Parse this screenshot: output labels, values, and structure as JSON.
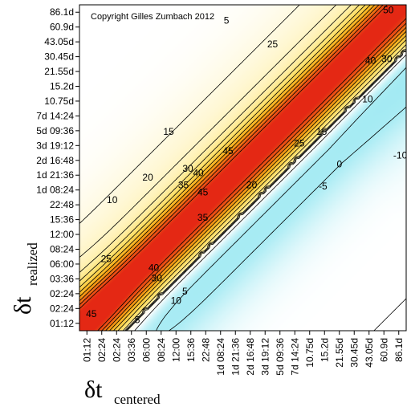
{
  "chart_data": {
    "type": "heatmap",
    "subtype": "filled-contour",
    "annotation": "Copyright Gilles Zumbach 2012",
    "xlabel": {
      "symbol": "δt",
      "subscript": "centered"
    },
    "ylabel": {
      "symbol": "δt",
      "subscript": "realized"
    },
    "x_ticks": [
      "01:12",
      "02:24",
      "02:24",
      "03:36",
      "06:00",
      "08:24",
      "12:00",
      "15:36",
      "22:48",
      "1d 08:24",
      "1d 21:36",
      "2d 16:48",
      "3d 19:12",
      "5d 09:36",
      "7d 14:24",
      "10.75d",
      "15.2d",
      "21.55d",
      "30.45d",
      "43.05d",
      "60.9d",
      "86.1d"
    ],
    "y_ticks": [
      "01:12",
      "02:24",
      "02:24",
      "03:36",
      "06:00",
      "08:24",
      "12:00",
      "15:36",
      "22:48",
      "1d 08:24",
      "1d 21:36",
      "2d 16:48",
      "3d 19:12",
      "5d 09:36",
      "7d 14:24",
      "10.75d",
      "15.2d",
      "21.55d",
      "30.45d",
      "43.05d",
      "60.9d",
      "86.1d"
    ],
    "contour_levels": [
      -10,
      -5,
      0,
      5,
      10,
      15,
      20,
      25,
      30,
      35,
      40,
      45,
      50
    ],
    "contour_labels": [
      {
        "text": "50",
        "x": 20.3,
        "y": 21.1
      },
      {
        "text": "45",
        "x": 0.3,
        "y": 0.6
      },
      {
        "text": "45",
        "x": 9.5,
        "y": 11.6
      },
      {
        "text": "45",
        "x": 7.8,
        "y": 8.8
      },
      {
        "text": "40",
        "x": 19.1,
        "y": 17.7
      },
      {
        "text": "40",
        "x": 7.5,
        "y": 10.1
      },
      {
        "text": "40",
        "x": 4.5,
        "y": 3.7
      },
      {
        "text": "35",
        "x": 6.5,
        "y": 9.3
      },
      {
        "text": "35",
        "x": 7.8,
        "y": 7.1
      },
      {
        "text": "30",
        "x": 20.2,
        "y": 17.8
      },
      {
        "text": "30",
        "x": 6.8,
        "y": 10.4
      },
      {
        "text": "30",
        "x": 4.7,
        "y": 3.0
      },
      {
        "text": "25",
        "x": 12.5,
        "y": 18.8
      },
      {
        "text": "25",
        "x": 14.3,
        "y": 12.1
      },
      {
        "text": "25",
        "x": 1.3,
        "y": 4.3
      },
      {
        "text": "20",
        "x": 4.1,
        "y": 9.8
      },
      {
        "text": "20",
        "x": 11.1,
        "y": 9.3
      },
      {
        "text": "15",
        "x": 5.5,
        "y": 12.9
      },
      {
        "text": "15",
        "x": 15.8,
        "y": 12.9
      },
      {
        "text": "10",
        "x": 1.7,
        "y": 8.3
      },
      {
        "text": "10",
        "x": 18.9,
        "y": 15.1
      },
      {
        "text": "10",
        "x": 6.0,
        "y": 1.5
      },
      {
        "text": "5",
        "x": 9.4,
        "y": 20.4
      },
      {
        "text": "5",
        "x": 6.6,
        "y": 2.1
      },
      {
        "text": "5",
        "x": 3.4,
        "y": 0.2
      },
      {
        "text": "0",
        "x": 17.0,
        "y": 10.7
      },
      {
        "text": "-5",
        "x": 15.9,
        "y": 9.2
      },
      {
        "text": "-10",
        "x": 21.1,
        "y": 11.3
      }
    ],
    "field_model": "value ≈ 50·exp(−((y−x)/2.4)²) tapering with distance from the diagonal; negative (cyan) region in the lower-right where x ≫ y",
    "colors": {
      "high": "#e8301a",
      "mid_high": "#f7a400",
      "mid": "#fde35c",
      "low": "#fff5cc",
      "near_zero": "#ffffff",
      "negative": "#8ce7f0",
      "contour_line": "#000000"
    },
    "grid": false,
    "legend": "none"
  }
}
